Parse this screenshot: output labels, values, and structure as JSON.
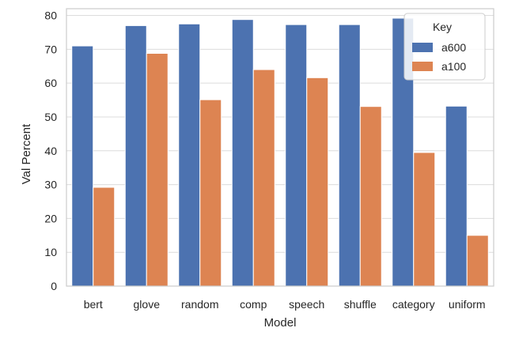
{
  "chart_data": {
    "type": "bar",
    "xlabel": "Model",
    "ylabel": "Val Percent",
    "ylim": [
      0,
      82
    ],
    "yticks": [
      0,
      10,
      20,
      30,
      40,
      50,
      60,
      70,
      80
    ],
    "categories": [
      "bert",
      "glove",
      "random",
      "comp",
      "speech",
      "shuffle",
      "category",
      "uniform"
    ],
    "series": [
      {
        "name": "a600",
        "color": "#4c72b0",
        "values": [
          71,
          77,
          77.5,
          78.8,
          77.3,
          77.3,
          79.2,
          53.2
        ]
      },
      {
        "name": "a100",
        "color": "#dd8452",
        "values": [
          29.2,
          68.8,
          55.1,
          64,
          61.6,
          53.1,
          39.5,
          15
        ]
      }
    ],
    "legend": {
      "title": "Key",
      "position": "top-right"
    },
    "grid": true
  }
}
